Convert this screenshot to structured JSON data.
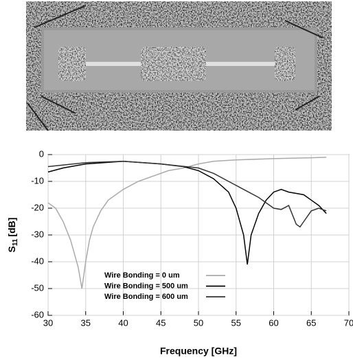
{
  "chart_data": {
    "type": "line",
    "xlabel": "Frequency [GHz]",
    "ylabel": "S",
    "ylabel_subscript": "11",
    "ylabel_unit": "[dB]",
    "xlim": [
      30,
      70
    ],
    "xticks": [
      30,
      35,
      40,
      45,
      50,
      55,
      60,
      65,
      70
    ],
    "ylim": [
      -60,
      0
    ],
    "yticks": [
      0,
      -10,
      -20,
      -30,
      -40,
      -50,
      -60
    ],
    "grid": true,
    "series": [
      {
        "name": "Wire Bonding = 0 um",
        "color": "#aaaaaa",
        "x": [
          30,
          31,
          32,
          33,
          34,
          34.5,
          35,
          35.5,
          36,
          37,
          38,
          40,
          42,
          44,
          46,
          48,
          50,
          52,
          55,
          60,
          65,
          67
        ],
        "values": [
          -18,
          -20,
          -25,
          -32,
          -42,
          -50,
          -40,
          -32,
          -27,
          -21,
          -17,
          -13,
          -10,
          -8,
          -6,
          -5,
          -3.5,
          -2.5,
          -2,
          -1.5,
          -1.2,
          -1
        ]
      },
      {
        "name": "Wire Bonding = 500 um",
        "color": "#000000",
        "x": [
          30,
          32,
          35,
          40,
          45,
          48,
          50,
          52,
          54,
          55,
          56,
          56.5,
          57,
          58,
          59,
          60,
          61,
          62,
          63,
          64,
          65,
          66,
          67
        ],
        "values": [
          -6.5,
          -5,
          -3.5,
          -2.5,
          -3.5,
          -4.5,
          -6,
          -9,
          -14,
          -20,
          -30,
          -41,
          -30,
          -22,
          -17,
          -14,
          -13,
          -14,
          -14.5,
          -15,
          -17,
          -19,
          -22
        ]
      },
      {
        "name": "Wire Bonding = 600 um",
        "color": "#333333",
        "x": [
          30,
          35,
          40,
          45,
          50,
          52,
          54,
          56,
          58,
          60,
          61,
          62,
          63,
          63.5,
          64,
          65,
          66,
          67
        ],
        "values": [
          -4.5,
          -3,
          -2.5,
          -3.5,
          -5,
          -7,
          -10,
          -13,
          -16,
          -20,
          -20.5,
          -19,
          -26,
          -27,
          -25,
          -21,
          -20,
          -21
        ]
      }
    ]
  }
}
